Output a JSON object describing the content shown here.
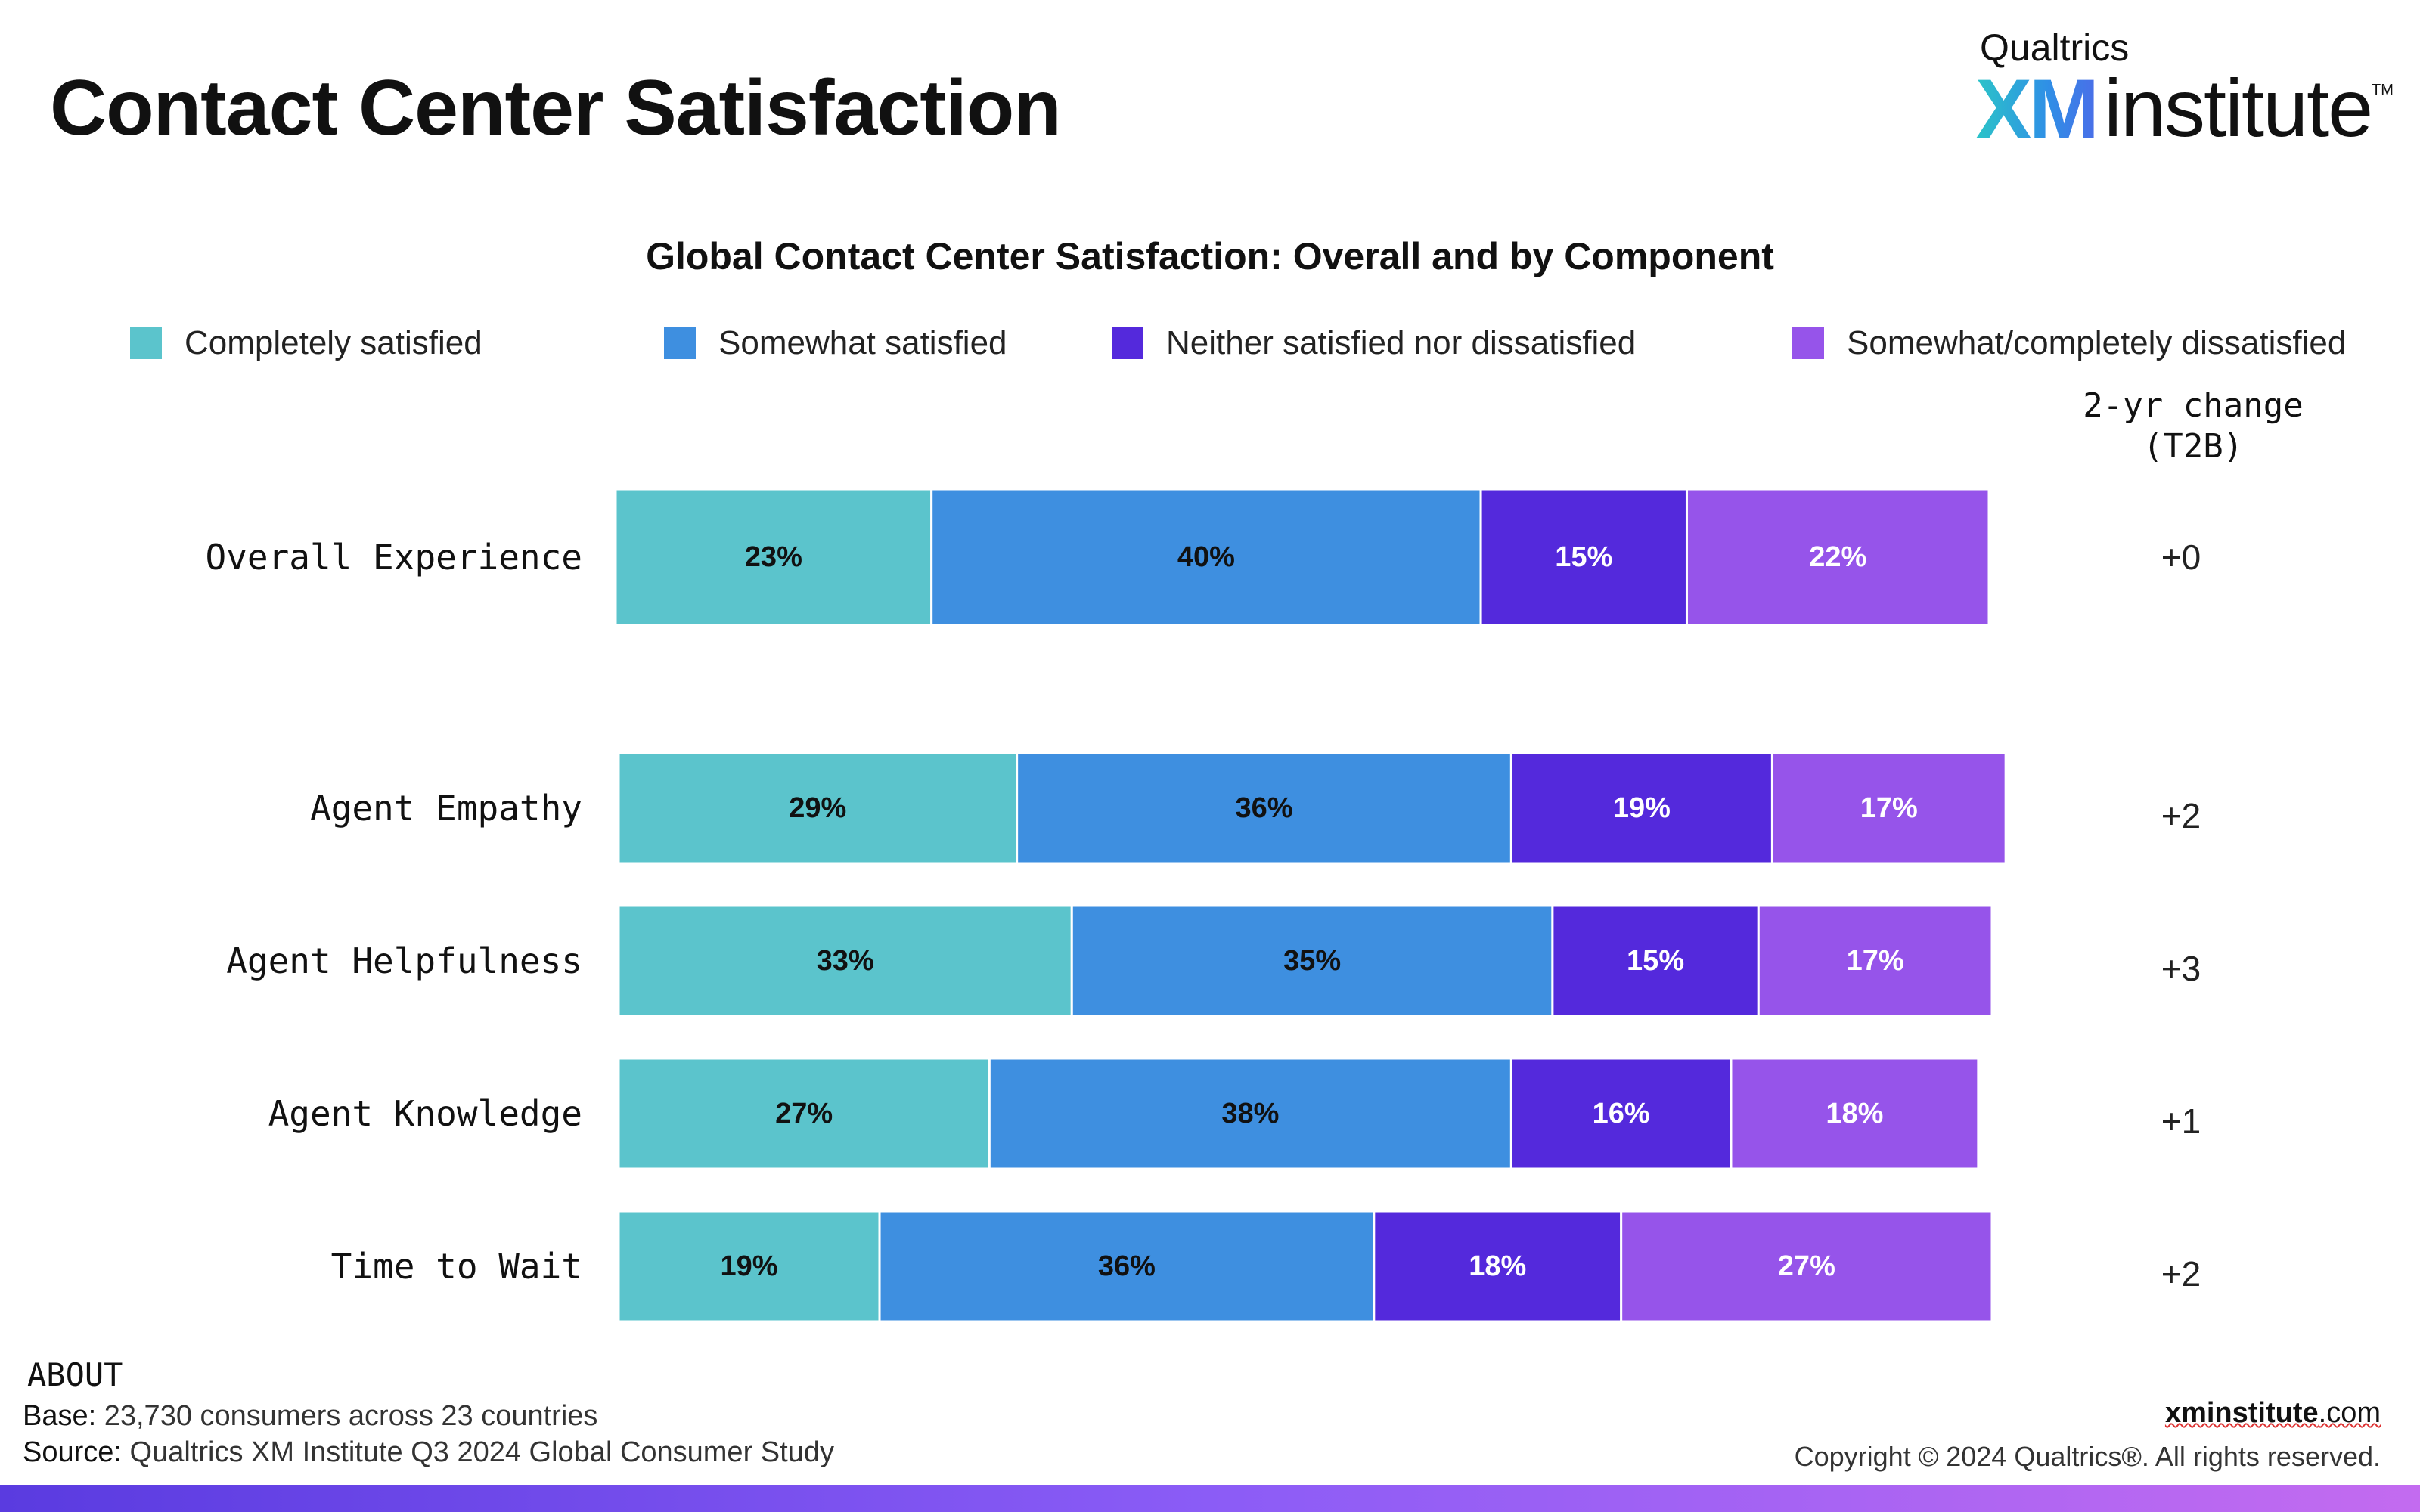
{
  "page": {
    "title": "Contact Center Satisfaction"
  },
  "brand": {
    "top": "Qualtrics",
    "xm": "XM",
    "name": "institute",
    "tm": "TM"
  },
  "chart_data": {
    "type": "bar",
    "orientation": "horizontal",
    "stacked": true,
    "title": "Global Contact Center Satisfaction: Overall and by Component",
    "categories": [
      "Overall Experience",
      "Agent Empathy",
      "Agent Helpfulness",
      "Agent Knowledge",
      "Time to Wait"
    ],
    "series": [
      {
        "name": "Completely satisfied",
        "color": "#5bc4cc",
        "values": [
          23,
          29,
          33,
          27,
          19
        ],
        "labels": [
          "23%",
          "29%",
          "33%",
          "27%",
          "19%"
        ],
        "label_color": "#111111"
      },
      {
        "name": "Somewhat satisfied",
        "color": "#3e8fe0",
        "values": [
          40,
          36,
          35,
          38,
          36
        ],
        "labels": [
          "40%",
          "36%",
          "35%",
          "38%",
          "36%"
        ],
        "label_color": "#111111"
      },
      {
        "name": "Neither satisfied nor dissatisfied",
        "color": "#5429dc",
        "values": [
          15,
          19,
          15,
          16,
          18
        ],
        "labels": [
          "15%",
          "19%",
          "15%",
          "16%",
          "18%"
        ],
        "label_color": "#ffffff"
      },
      {
        "name": "Somewhat/completely dissatisfied",
        "color": "#9654ea",
        "values": [
          22,
          17,
          17,
          18,
          27
        ],
        "labels": [
          "22%",
          "17%",
          "17%",
          "18%",
          "27%"
        ],
        "label_color": "#ffffff"
      }
    ],
    "xlim": [
      0,
      100
    ],
    "legend_position": "top",
    "grid": false,
    "change_column": {
      "header": "2-yr change (T2B)",
      "values": [
        "+0",
        "+2",
        "+3",
        "+1",
        "+2"
      ]
    }
  },
  "footer": {
    "about_label": "ABOUT",
    "base_key": "Base:",
    "base_value": " 23,730 consumers across 23 countries",
    "source_key": "Source:",
    "source_value": " Qualtrics XM Institute Q3 2024 Global Consumer Study",
    "site_name": "xminstitute",
    "site_tld": ".com",
    "copyright": "Copyright © 2024 Qualtrics®. All rights reserved."
  }
}
